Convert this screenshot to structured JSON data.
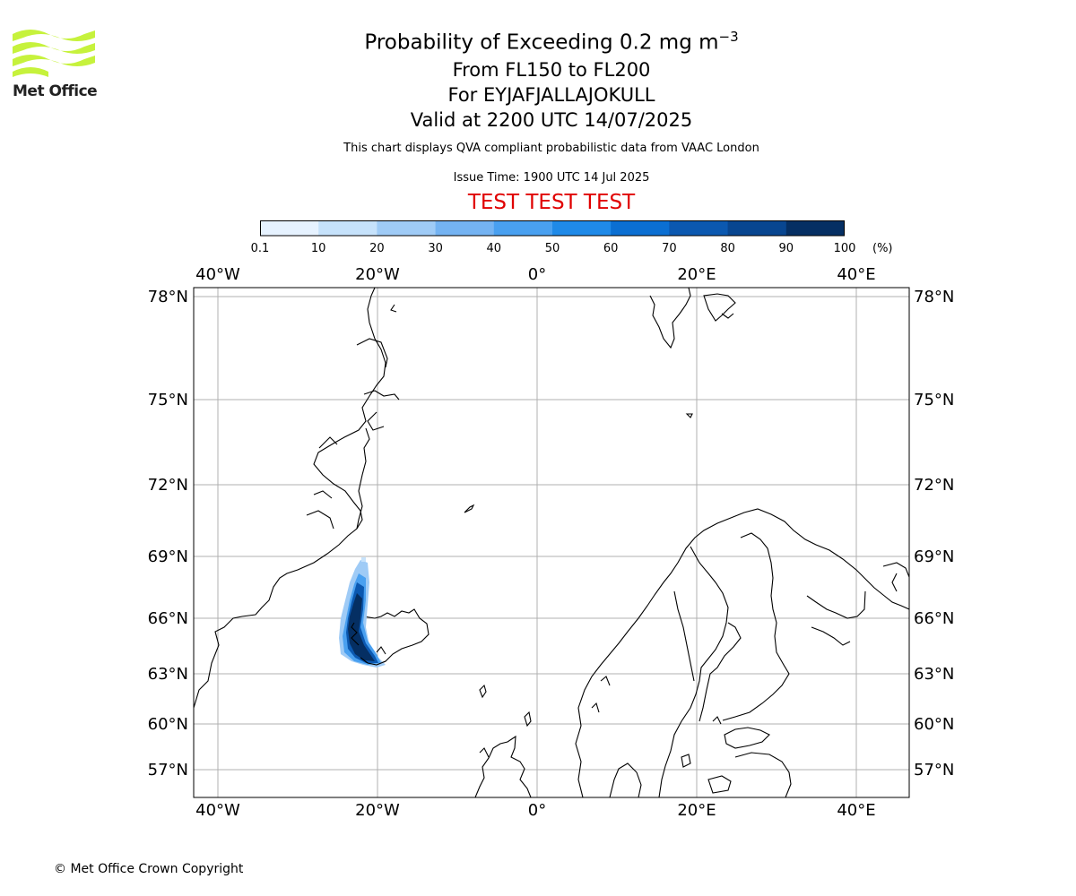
{
  "logo": {
    "text": "Met Office",
    "color": "#c6f23c"
  },
  "title": {
    "line1": "Probability of Exceeding 0.2 mg m",
    "line1_sup": "−3",
    "line2": "From FL150 to FL200",
    "line3": "For EYJAFJALLAJOKULL",
    "line4": "Valid at 2200 UTC 14/07/2025"
  },
  "subtitle": "This chart displays QVA compliant probabilistic data from VAAC London",
  "issue_time": "Issue Time: 1900 UTC 14 Jul 2025",
  "banner": {
    "text": "TEST TEST TEST",
    "color": "#e00000"
  },
  "colorbar": {
    "unit": "(%)",
    "ticks": [
      "0.1",
      "10",
      "20",
      "30",
      "40",
      "50",
      "60",
      "70",
      "80",
      "90",
      "100"
    ],
    "colors": [
      "#e6f2ff",
      "#c6e2fb",
      "#9fcbf6",
      "#74b3f2",
      "#49a0f0",
      "#1f8ae8",
      "#0b6fd2",
      "#0b58b0",
      "#084690",
      "#052f63"
    ]
  },
  "map": {
    "lon_ticks_top": [
      "40°W",
      "20°W",
      "0°",
      "20°E",
      "40°E"
    ],
    "lon_ticks_bottom": [
      "40°W",
      "20°W",
      "0°",
      "20°E",
      "40°E"
    ],
    "lat_ticks_left": [
      "78°N",
      "75°N",
      "72°N",
      "69°N",
      "66°N",
      "63°N",
      "60°N",
      "57°N"
    ],
    "lat_ticks_right": [
      "78°N",
      "75°N",
      "72°N",
      "69°N",
      "66°N",
      "63°N",
      "60°N",
      "57°N"
    ],
    "plume_note": "ash probability plume west/south-west of Iceland up to 100%"
  },
  "copyright": "© Met Office Crown Copyright"
}
